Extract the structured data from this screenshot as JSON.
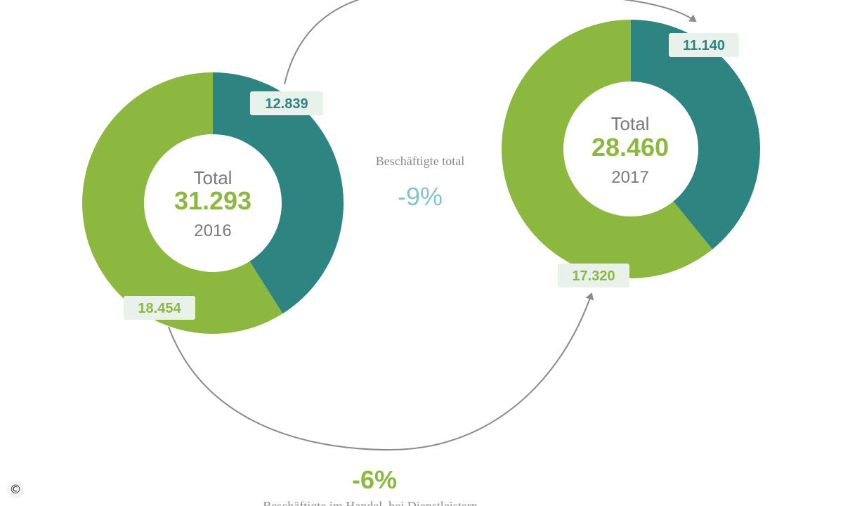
{
  "colors": {
    "teal": "#2e8480",
    "green": "#8db83f",
    "label_bg": "#e8f1ea",
    "arrow": "#8a8a8a"
  },
  "chart_data": [
    {
      "type": "pie",
      "style": "donut",
      "center_label": "Total",
      "center_value": "31.293",
      "year": "2016",
      "slices": [
        {
          "value": 12839,
          "label": "12.839",
          "color": "#2e8480"
        },
        {
          "value": 18454,
          "label": "18.454",
          "color": "#8db83f"
        }
      ]
    },
    {
      "type": "pie",
      "style": "donut",
      "center_label": "Total",
      "center_value": "28.460",
      "year": "2017",
      "slices": [
        {
          "value": 11140,
          "label": "11.140",
          "color": "#2e8480"
        },
        {
          "value": 17320,
          "label": "17.320",
          "color": "#8db83f"
        }
      ]
    }
  ],
  "annotations": {
    "total_caption": "Beschäftigte total",
    "total_change": "-9%",
    "trade_change": "-6%",
    "trade_caption": "Beschäftigte im Handel, bei Dienstleistern"
  },
  "copyright_symbol": "©"
}
